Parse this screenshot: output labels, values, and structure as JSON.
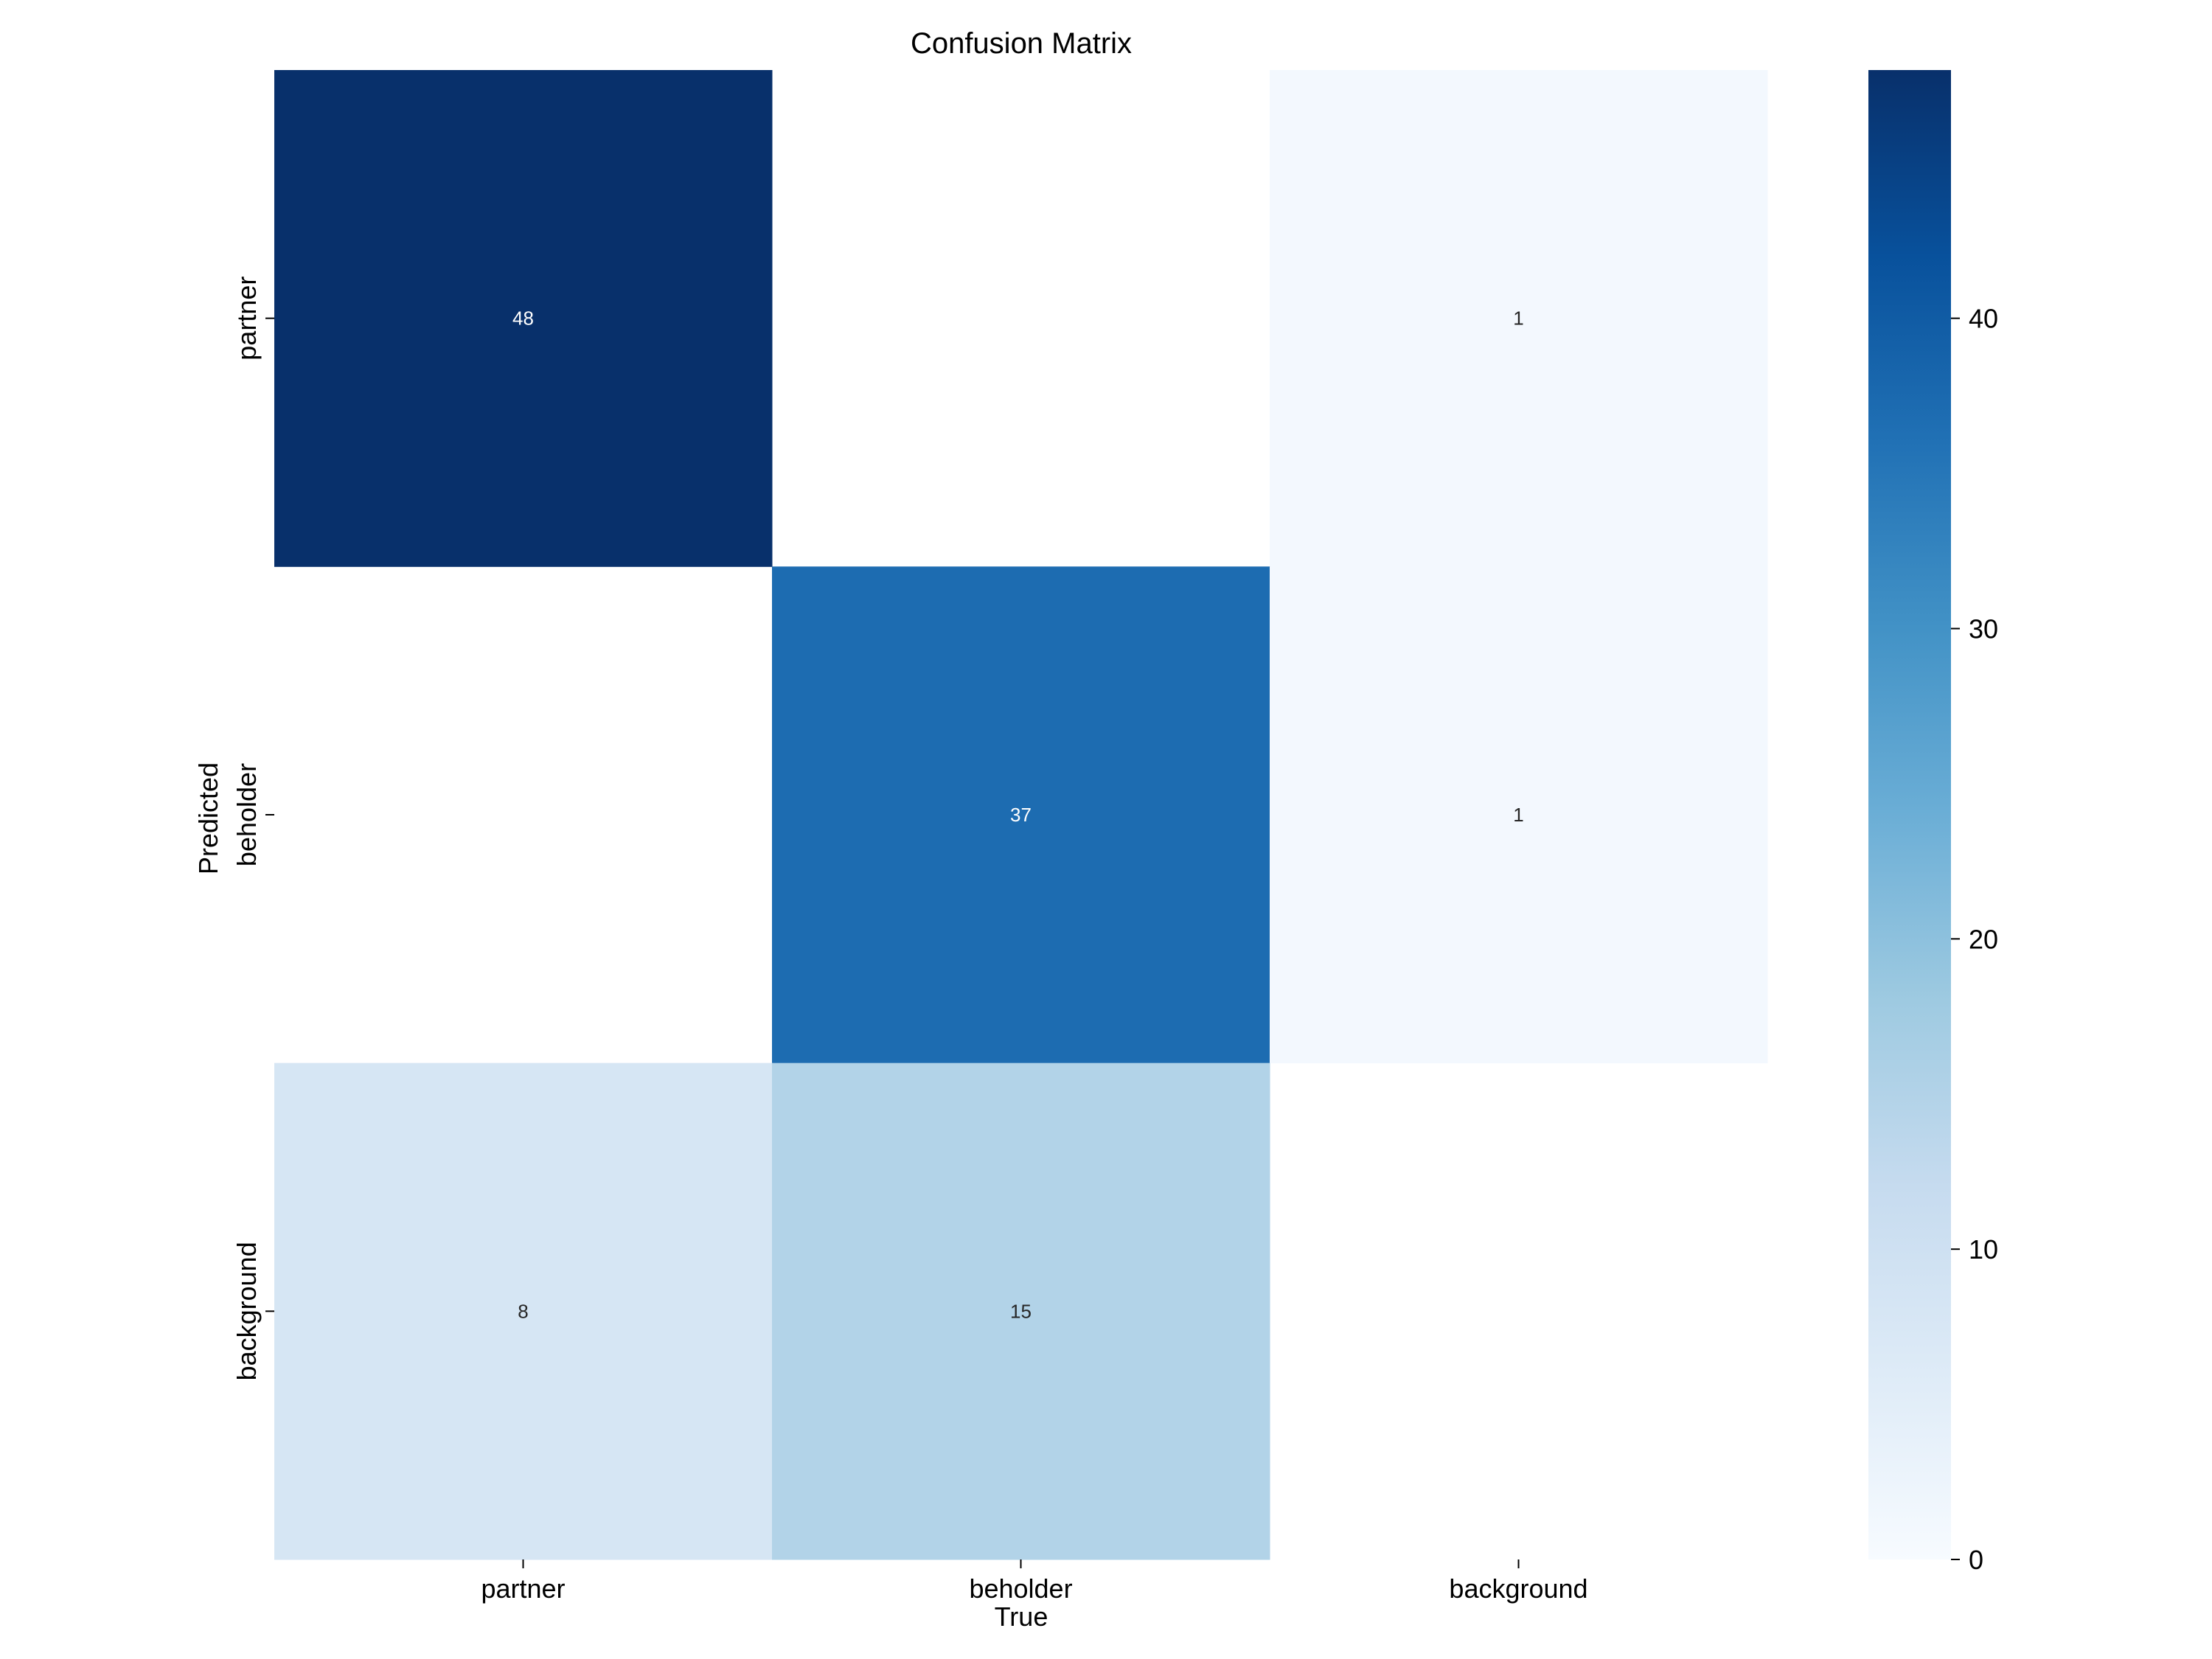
{
  "chart_data": {
    "type": "heatmap",
    "title": "Confusion Matrix",
    "xlabel": "True",
    "ylabel": "Predicted",
    "x_categories": [
      "partner",
      "beholder",
      "background"
    ],
    "y_categories": [
      "partner",
      "beholder",
      "background"
    ],
    "values": [
      [
        48,
        null,
        1
      ],
      [
        null,
        37,
        1
      ],
      [
        8,
        15,
        null
      ]
    ],
    "colorbar": {
      "min": 0,
      "max": 48,
      "ticks": [
        0,
        10,
        20,
        30,
        40
      ],
      "colormap": "Blues"
    }
  }
}
